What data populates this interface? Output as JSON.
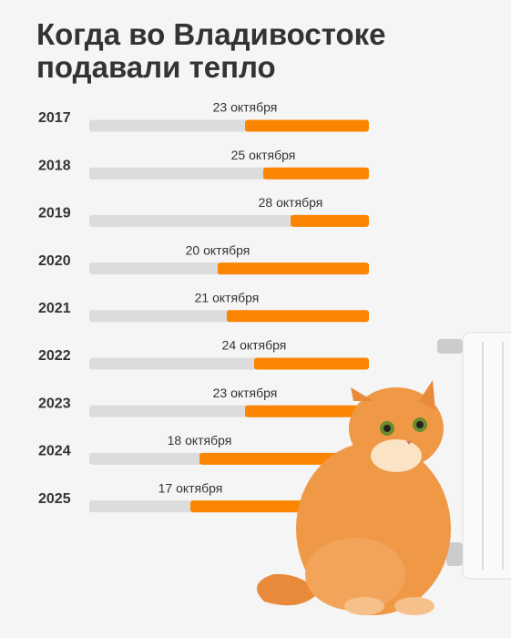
{
  "chart_data": {
    "type": "bar",
    "title": "Когда во Владивостоке подавали тепло",
    "categories": [
      "2017",
      "2018",
      "2019",
      "2020",
      "2021",
      "2022",
      "2023",
      "2024",
      "2025"
    ],
    "values": [
      23,
      25,
      28,
      20,
      21,
      24,
      23,
      18,
      17
    ],
    "value_labels": [
      "23 октября",
      "25 октября",
      "28 октября",
      "20 октября",
      "21 октября",
      "24 октября",
      "23 октября",
      "18 октября",
      "17 октября"
    ],
    "color": "#fb8500"
  }
}
